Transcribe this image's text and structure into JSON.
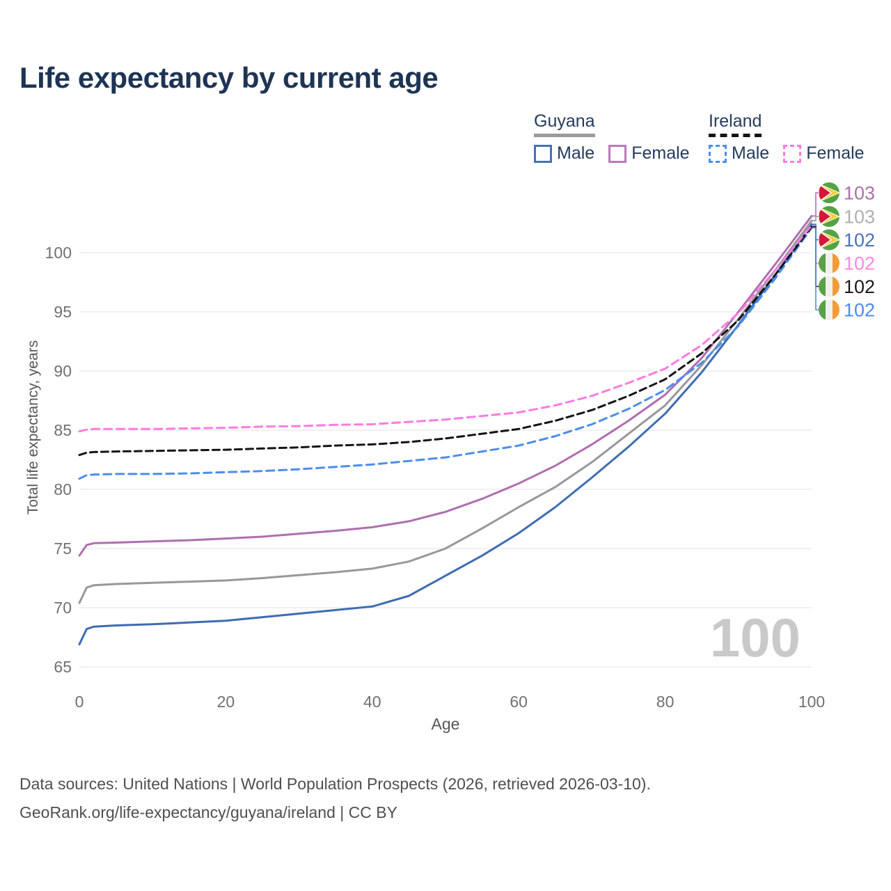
{
  "title": "Life expectancy by current age",
  "watermark": {
    "value": "100"
  },
  "legend": {
    "groups": [
      {
        "name": "Guyana",
        "underline_style": "solid",
        "underline_color": "#9a9a9a",
        "items": [
          {
            "label": "Male",
            "color": "#4472b8",
            "dashed": false
          },
          {
            "label": "Female",
            "color": "#b87ab8",
            "dashed": false
          }
        ]
      },
      {
        "name": "Ireland",
        "underline_style": "dashed",
        "underline_color": "#141414",
        "items": [
          {
            "label": "Male",
            "color": "#4a8def",
            "dashed": true
          },
          {
            "label": "Female",
            "color": "#ff7ae1",
            "dashed": true
          }
        ]
      }
    ]
  },
  "axes": {
    "x_label": "Age",
    "y_label": "Total life expectancy, years",
    "x_ticks": [
      0,
      20,
      40,
      60,
      80,
      100
    ],
    "y_ticks": [
      65,
      70,
      75,
      80,
      85,
      90,
      95,
      100
    ],
    "x_range": [
      0,
      100
    ],
    "y_range": [
      65,
      103.5
    ]
  },
  "chart_data": {
    "type": "line",
    "title": "Life expectancy by current age",
    "xlabel": "Age",
    "ylabel": "Total life expectancy, years",
    "grid": "horizontal-only",
    "legend_position": "top-right",
    "ages": [
      0,
      1,
      2,
      5,
      10,
      15,
      20,
      25,
      30,
      35,
      40,
      45,
      50,
      55,
      60,
      65,
      70,
      75,
      80,
      85,
      90,
      95,
      100
    ],
    "series": [
      {
        "key": "guyana_male",
        "name": "Guyana Male",
        "color": "#3e6cb2",
        "dash": null,
        "values": [
          66.9,
          68.2,
          68.4,
          68.5,
          68.6,
          68.75,
          68.9,
          69.2,
          69.5,
          69.8,
          70.1,
          71.0,
          72.7,
          74.4,
          76.3,
          78.5,
          81.0,
          83.6,
          86.4,
          89.9,
          93.9,
          98.1,
          102.4
        ]
      },
      {
        "key": "guyana_total",
        "name": "Guyana (both sexes)",
        "color": "#989898",
        "dash": null,
        "values": [
          70.4,
          71.7,
          71.9,
          72.0,
          72.1,
          72.2,
          72.3,
          72.5,
          72.75,
          73.0,
          73.3,
          73.9,
          75.0,
          76.7,
          78.5,
          80.2,
          82.3,
          84.7,
          87.1,
          90.5,
          94.4,
          98.5,
          102.7
        ]
      },
      {
        "key": "guyana_female",
        "name": "Guyana Female",
        "color": "#ae6fae",
        "dash": null,
        "values": [
          74.4,
          75.3,
          75.45,
          75.5,
          75.6,
          75.7,
          75.85,
          76.0,
          76.25,
          76.5,
          76.8,
          77.3,
          78.1,
          79.2,
          80.5,
          82.0,
          83.8,
          85.8,
          88.0,
          91.1,
          95.0,
          99.0,
          103.1
        ]
      },
      {
        "key": "ireland_male",
        "name": "Ireland Male",
        "color": "#4a8def",
        "dash": "11 7",
        "values": [
          80.9,
          81.2,
          81.25,
          81.3,
          81.3,
          81.35,
          81.45,
          81.55,
          81.7,
          81.9,
          82.1,
          82.4,
          82.7,
          83.2,
          83.7,
          84.5,
          85.5,
          86.8,
          88.4,
          90.7,
          93.8,
          97.8,
          102.1
        ]
      },
      {
        "key": "ireland_total",
        "name": "Ireland (both sexes)",
        "color": "#141414",
        "dash": "10 6",
        "values": [
          82.9,
          83.1,
          83.15,
          83.2,
          83.25,
          83.3,
          83.35,
          83.45,
          83.55,
          83.7,
          83.8,
          84.0,
          84.3,
          84.7,
          85.1,
          85.8,
          86.7,
          87.9,
          89.3,
          91.5,
          94.3,
          98.1,
          102.2
        ]
      },
      {
        "key": "ireland_female",
        "name": "Ireland Female",
        "color": "#ff7ae1",
        "dash": "11 7",
        "values": [
          84.9,
          85.05,
          85.1,
          85.1,
          85.1,
          85.15,
          85.2,
          85.3,
          85.35,
          85.45,
          85.5,
          85.7,
          85.9,
          86.2,
          86.5,
          87.1,
          87.9,
          89.0,
          90.2,
          92.2,
          94.9,
          98.5,
          102.3
        ]
      }
    ]
  },
  "right_labels": [
    {
      "value": "103",
      "series": "guyana_female",
      "flag": "guyana-flag-icon",
      "color": "#a873a8"
    },
    {
      "value": "103",
      "series": "guyana_total",
      "flag": "guyana-flag-icon",
      "color": "#b0b0b0"
    },
    {
      "value": "102",
      "series": "guyana_male",
      "flag": "guyana-flag-icon",
      "color": "#4673c0"
    },
    {
      "value": "102",
      "series": "ireland_female",
      "flag": "ireland-flag-icon",
      "color": "#ff87e3"
    },
    {
      "value": "102",
      "series": "ireland_total",
      "flag": "ireland-flag-icon",
      "color": "#1a1a1a"
    },
    {
      "value": "102",
      "series": "ireland_male",
      "flag": "ireland-flag-icon",
      "color": "#4a8cf0"
    }
  ],
  "footer": {
    "line1": "Data sources: United Nations | World Population Prospects (2026, retrieved 2026-03-10).",
    "line2": "GeoRank.org/life-expectancy/guyana/ireland | CC BY"
  }
}
